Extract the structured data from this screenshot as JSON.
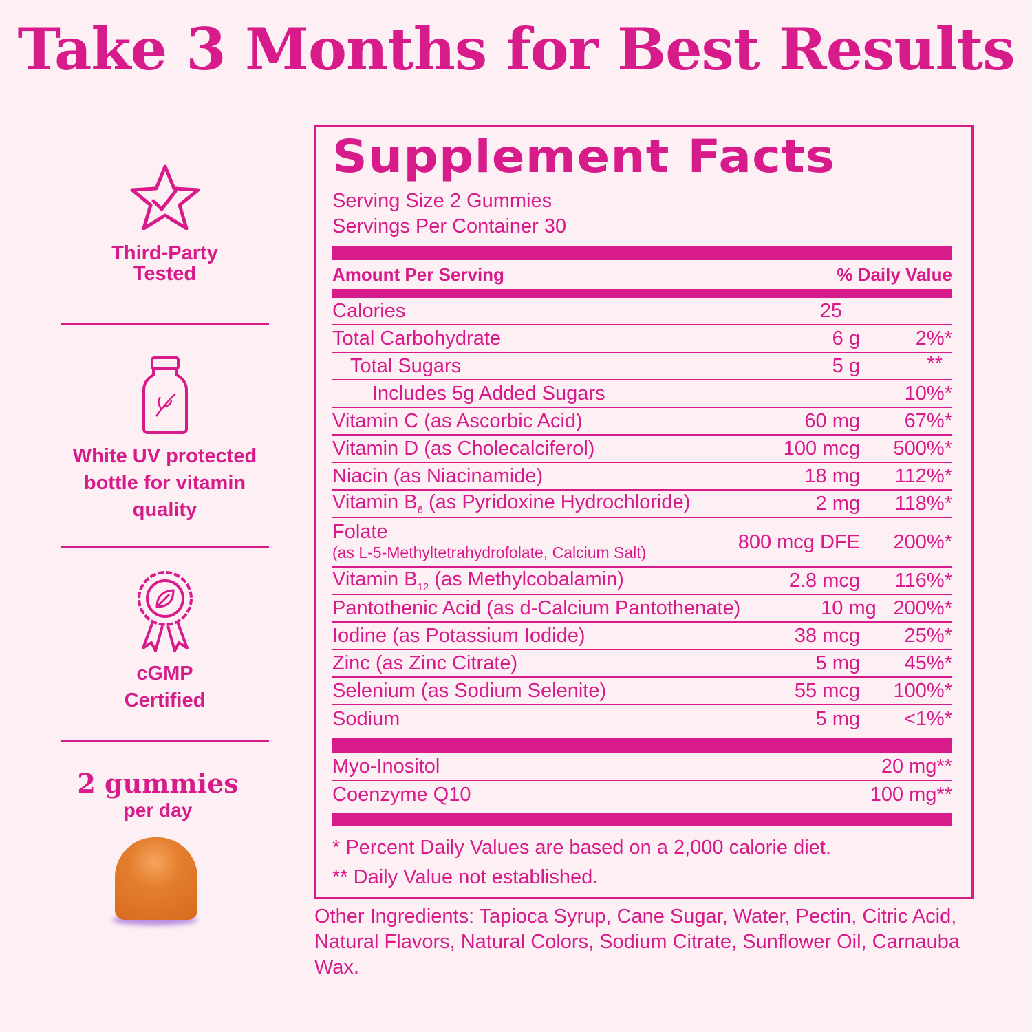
{
  "title": "Take 3 Months for Best Results",
  "features": [
    {
      "icon": "star-check-icon",
      "label": "Third-Party Tested"
    },
    {
      "icon": "bottle-icon",
      "label": "White UV protected bottle for vitamin quality"
    },
    {
      "icon": "award-ribbon-icon",
      "label": "cGMP Certified"
    }
  ],
  "dose": {
    "big": "2 gummies",
    "small": "per day"
  },
  "facts": {
    "heading": "Supplement Facts",
    "serving_size": "Serving Size 2 Gummies",
    "servings_per_container": "Servings Per Container 30",
    "col_amount": "Amount Per Serving",
    "col_dv": "% Daily Value",
    "calories": {
      "name": "Calories",
      "amount": "25"
    },
    "rows": [
      {
        "name": "Total Carbohydrate",
        "amount": "6 g",
        "dv": "2%*"
      },
      {
        "name": "Total Sugars",
        "amount": "5 g",
        "dv": "**"
      },
      {
        "name": "Includes 5g Added Sugars",
        "amount": "",
        "dv": "10%*"
      },
      {
        "name": "Vitamin C (as Ascorbic Acid)",
        "amount": "60 mg",
        "dv": "67%*"
      },
      {
        "name": "Vitamin D (as Cholecalciferol)",
        "amount": "100 mcg",
        "dv": "500%*"
      },
      {
        "name": "Niacin (as Niacinamide)",
        "amount": "18 mg",
        "dv": "112%*"
      },
      {
        "name_pre": "Vitamin B",
        "name_sub": "6",
        "name_post": " (as Pyridoxine Hydrochloride)",
        "amount": "2 mg",
        "dv": "118%*"
      },
      {
        "name": "Folate",
        "note": "(as L-5-Methyltetrahydrofolate, Calcium Salt)",
        "amount": "800 mcg DFE",
        "dv": "200%*"
      },
      {
        "name_pre": "Vitamin B",
        "name_sub": "12",
        "name_post": " (as Methylcobalamin)",
        "amount": "2.8 mcg",
        "dv": "116%*"
      },
      {
        "name": "Pantothenic Acid (as d-Calcium Pantothenate)",
        "amount": "10 mg",
        "dv": "200%*"
      },
      {
        "name": "Iodine (as Potassium Iodide)",
        "amount": "38 mcg",
        "dv": "25%*"
      },
      {
        "name": "Zinc (as Zinc Citrate)",
        "amount": "5 mg",
        "dv": "45%*"
      },
      {
        "name": "Selenium (as Sodium Selenite)",
        "amount": "55 mcg",
        "dv": "100%*"
      },
      {
        "name": "Sodium",
        "amount": "5 mg",
        "dv": "<1%*"
      }
    ],
    "other_rows": [
      {
        "name": "Myo-Inositol",
        "amount": "20 mg**"
      },
      {
        "name": "Coenzyme Q10",
        "amount": "100 mg**"
      }
    ],
    "footnote1": "* Percent Daily Values are based on a 2,000 calorie diet.",
    "footnote2": "** Daily Value not established."
  },
  "other_ingredients": "Other Ingredients: Tapioca Syrup, Cane Sugar, Water, Pectin, Citric Acid, Natural Flavors, Natural Colors, Sodium Citrate, Sunflower Oil, Carnauba Wax.",
  "colors": {
    "accent": "#d81b8a",
    "background": "#fdf0f5",
    "gummy": "#e07b2e"
  }
}
